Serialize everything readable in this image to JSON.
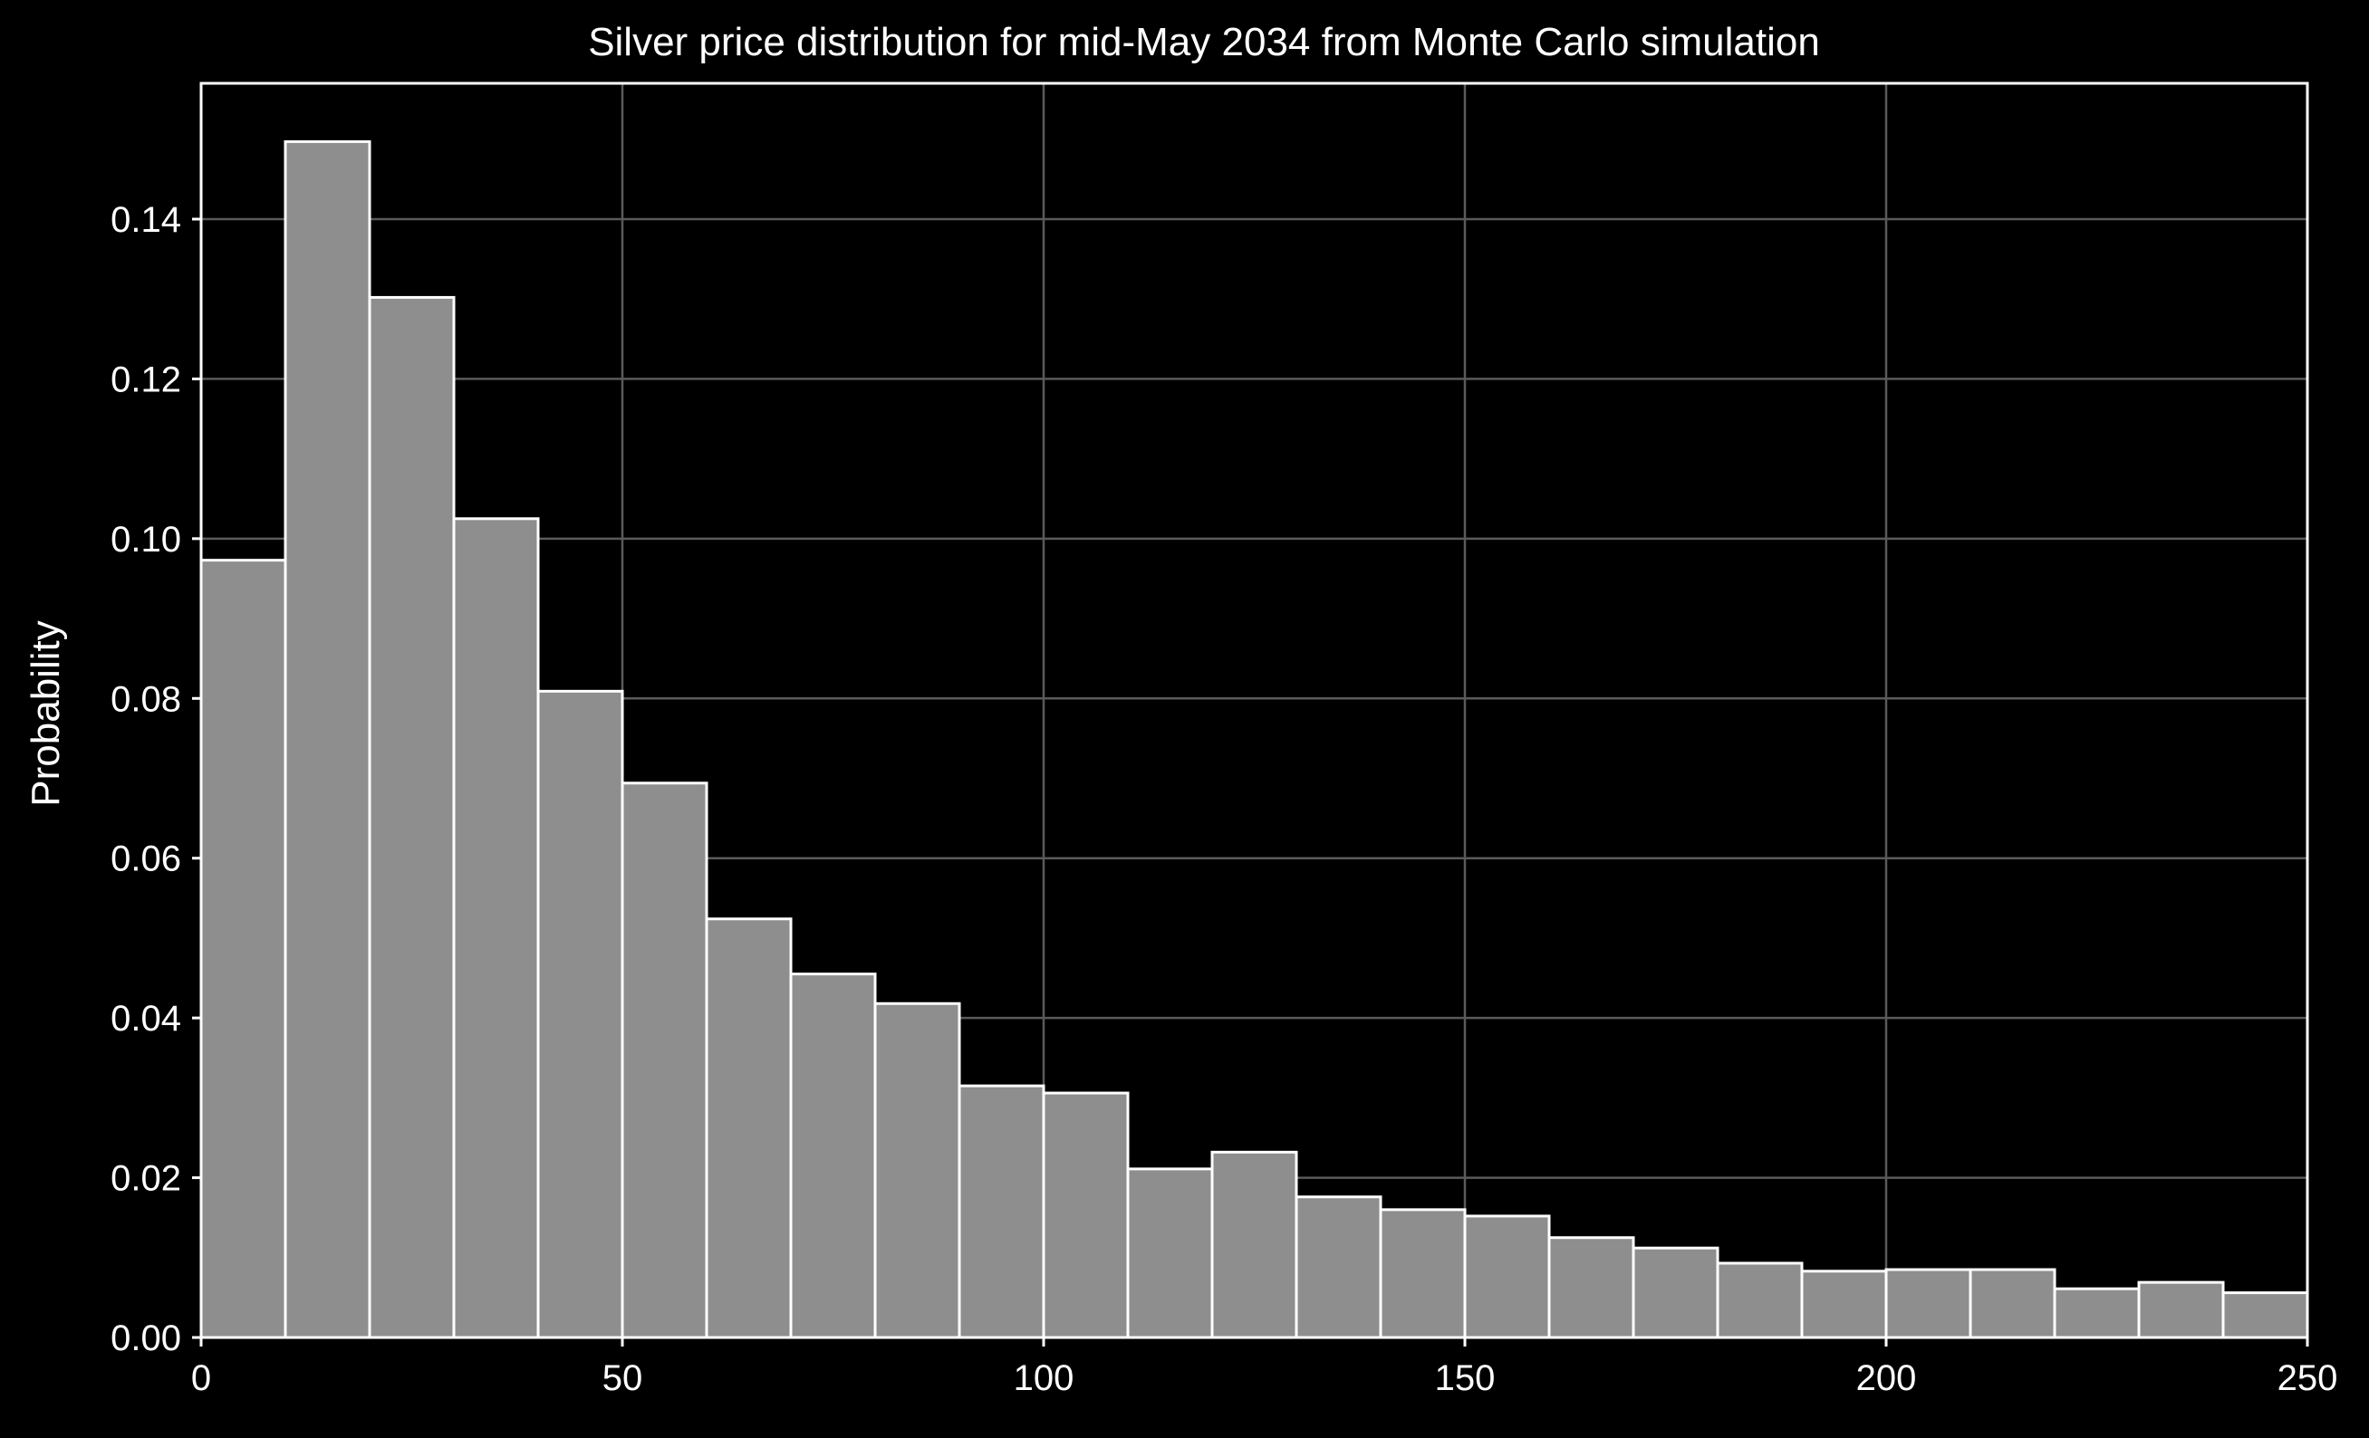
{
  "chart_data": {
    "type": "bar",
    "title": "Silver price distribution for mid-May 2034 from Monte Carlo simulation",
    "xlabel": "",
    "ylabel": "Probability",
    "xlim": [
      0,
      250
    ],
    "ylim": [
      0,
      0.157
    ],
    "grid": true,
    "bin_width": 10,
    "x": [
      0,
      10,
      20,
      30,
      40,
      50,
      60,
      70,
      80,
      90,
      100,
      110,
      120,
      130,
      140,
      150,
      160,
      170,
      180,
      190,
      200,
      210,
      220,
      230,
      240
    ],
    "values": [
      0.0973,
      0.1497,
      0.1302,
      0.1025,
      0.0809,
      0.0694,
      0.0524,
      0.0455,
      0.0418,
      0.0315,
      0.0306,
      0.0211,
      0.0232,
      0.0176,
      0.016,
      0.0152,
      0.0125,
      0.0112,
      0.0093,
      0.0083,
      0.0085,
      0.0085,
      0.0061,
      0.0069,
      0.0056
    ],
    "xticks": [
      0,
      50,
      100,
      150,
      200,
      250
    ],
    "xtick_labels": [
      "0",
      "50",
      "100",
      "150",
      "200",
      "250"
    ],
    "yticks": [
      0,
      0.02,
      0.04,
      0.06,
      0.08,
      0.1,
      0.12,
      0.14
    ],
    "ytick_labels": [
      "0.00",
      "0.02",
      "0.04",
      "0.06",
      "0.08",
      "0.10",
      "0.12",
      "0.14"
    ],
    "colors": {
      "background": "#000000",
      "bar_fill": "#8e8e8e",
      "bar_edge": "#ffffff",
      "grid": "#5a5a5a",
      "axes": "#ffffff",
      "text": "#ffffff"
    }
  }
}
